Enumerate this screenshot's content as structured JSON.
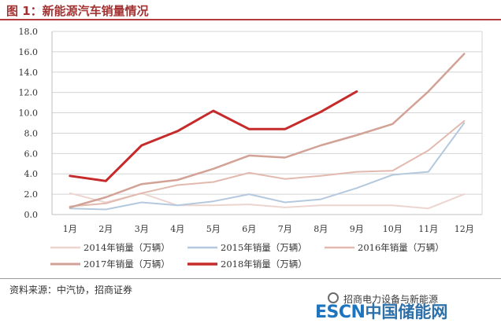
{
  "figure": {
    "title": "图 1：新能源汽车销量情况",
    "source": "资料来源：中汽协，招商证券",
    "watermark": "招商电力设备与新能源",
    "logo_latin": "ESCN",
    "logo_chinese": "中国储能网"
  },
  "colors": {
    "title": "#a33131",
    "grid": "#d4d4d4",
    "axis": "#bfbfbf"
  },
  "chart_data": {
    "type": "line",
    "title": "",
    "xlabel": "",
    "ylabel": "",
    "ylim": [
      0,
      18
    ],
    "y_ticks": [
      "0.0",
      "2.0",
      "4.0",
      "6.0",
      "8.0",
      "10.0",
      "12.0",
      "14.0",
      "16.0",
      "18.0"
    ],
    "categories": [
      "1月",
      "2月",
      "3月",
      "4月",
      "5月",
      "6月",
      "7月",
      "8月",
      "9月",
      "10月",
      "11月",
      "12月"
    ],
    "grid": "horizontal",
    "legend_position": "bottom",
    "series": [
      {
        "name": "2014年销量（万辆）",
        "color": "#ecd5cf",
        "width": 2,
        "values": [
          2.1,
          1.2,
          2.1,
          0.9,
          0.9,
          1.0,
          0.7,
          0.9,
          0.9,
          0.9,
          0.6,
          2.0
        ]
      },
      {
        "name": "2015年销量（万辆）",
        "color": "#b5c9de",
        "width": 2,
        "values": [
          0.6,
          0.5,
          1.2,
          0.9,
          1.3,
          2.0,
          1.2,
          1.5,
          2.6,
          3.9,
          4.2,
          9.0
        ]
      },
      {
        "name": "2016年销量（万辆）",
        "color": "#e2b9ae",
        "width": 2,
        "values": [
          0.8,
          1.1,
          2.1,
          2.9,
          3.2,
          4.1,
          3.5,
          3.8,
          4.2,
          4.3,
          6.3,
          9.2
        ]
      },
      {
        "name": "2017年销量（万辆）",
        "color": "#d3a296",
        "width": 2.5,
        "values": [
          0.7,
          1.7,
          3.0,
          3.4,
          4.5,
          5.8,
          5.6,
          6.8,
          7.8,
          8.9,
          12.1,
          15.8
        ]
      },
      {
        "name": "2018年销量（万辆）",
        "color": "#c62a2a",
        "width": 3,
        "values": [
          3.8,
          3.3,
          6.8,
          8.2,
          10.2,
          8.4,
          8.4,
          10.1,
          12.1,
          null,
          null,
          null
        ]
      }
    ]
  }
}
